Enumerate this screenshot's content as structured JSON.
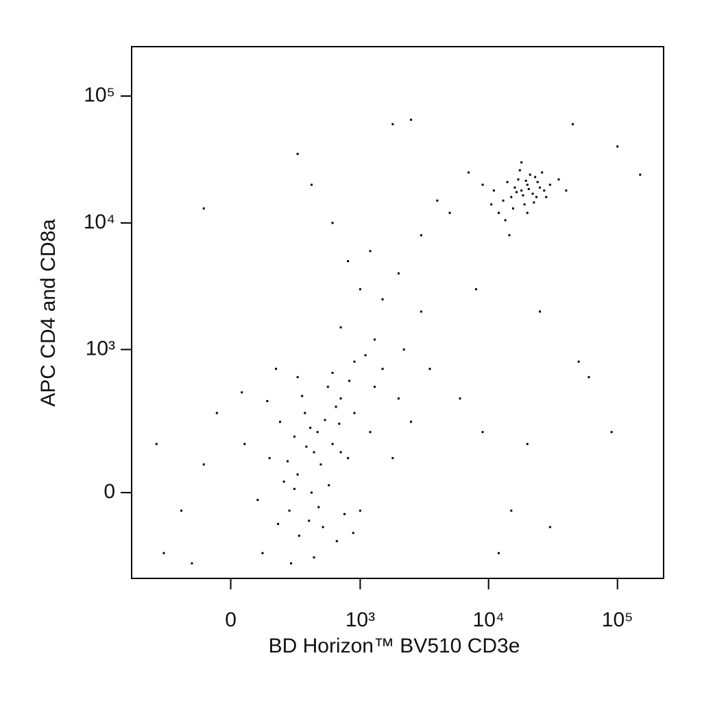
{
  "chart_data": {
    "type": "scatter",
    "x_label": "BD Horizon™ BV510 CD3e",
    "y_label": "APC CD4 and CD8a",
    "scale": "biexponential",
    "color": "#000000",
    "xlim": [
      -570,
      228000
    ],
    "ylim": [
      -340,
      245000
    ],
    "xticks": [
      0,
      {
        "value": 1000,
        "label": "10³"
      },
      {
        "value": 10000,
        "label": "10⁴"
      },
      {
        "value": 100000,
        "label": "10⁵"
      }
    ],
    "yticks": [
      0,
      {
        "value": 1000,
        "label": "10³"
      },
      {
        "value": 10000,
        "label": "10⁴"
      },
      {
        "value": 100000,
        "label": "10⁵"
      }
    ],
    "x": [
      150,
      300,
      450,
      250,
      600,
      350,
      200,
      500,
      400,
      100,
      700,
      800,
      50,
      -100,
      -200,
      550,
      300,
      900,
      1200,
      1500,
      650,
      420,
      280,
      380,
      220,
      480,
      330,
      750,
      -50,
      120,
      1000,
      1300,
      180,
      260,
      900,
      600,
      2000,
      1800,
      -300,
      -350,
      40,
      520,
      360,
      460,
      240,
      310,
      680,
      140,
      820,
      1100,
      420,
      -150,
      560,
      700,
      280,
      190,
      640,
      390,
      880,
      2500,
      18000,
      20000,
      15000,
      22000,
      17000,
      25000,
      19000,
      13000,
      21000,
      16000,
      24000,
      28000,
      14000,
      12000,
      30000,
      18500,
      20500,
      16500,
      23000,
      11000,
      26000,
      19500,
      15500,
      9000,
      35000,
      17500,
      22500,
      13500,
      27000,
      10500,
      40000,
      14500,
      20000,
      18000,
      23500,
      1000,
      1500,
      800,
      2000,
      1200,
      600,
      3000,
      5000,
      400,
      300,
      1800,
      2500,
      7000,
      4000,
      700,
      1300,
      2200,
      3500,
      6000,
      9000,
      15000,
      20000,
      30000,
      60000,
      90000,
      150000,
      100000,
      45000,
      -100,
      8000,
      25000,
      12000,
      50000,
      3000
    ],
    "y": [
      100,
      50,
      200,
      -50,
      150,
      300,
      250,
      -100,
      0,
      -20,
      400,
      100,
      150,
      80,
      -50,
      500,
      600,
      300,
      200,
      700,
      -150,
      120,
      180,
      -80,
      30,
      80,
      420,
      -60,
      300,
      -200,
      -50,
      500,
      700,
      -250,
      800,
      650,
      400,
      100,
      -200,
      150,
      450,
      260,
      140,
      -40,
      90,
      -130,
      240,
      380,
      560,
      900,
      -220,
      -250,
      20,
      120,
      10,
      -90,
      340,
      220,
      -120,
      250,
      18000,
      20000,
      16000,
      17000,
      22000,
      19000,
      14000,
      15000,
      24000,
      19000,
      21000,
      16000,
      21000,
      12000,
      20000,
      16500,
      18500,
      17500,
      23000,
      18000,
      25000,
      21500,
      13000,
      20000,
      22000,
      26000,
      14500,
      10500,
      18000,
      14000,
      18000,
      8000,
      12000,
      30000,
      16000,
      3000,
      2500,
      5000,
      4000,
      6000,
      10000,
      8000,
      12000,
      20000,
      35000,
      60000,
      65000,
      25000,
      15000,
      1500,
      1200,
      1000,
      700,
      400,
      200,
      -50,
      150,
      -100,
      600,
      200,
      24000,
      40000,
      60000,
      13000,
      3000,
      2000,
      -200,
      800,
      2000
    ]
  }
}
